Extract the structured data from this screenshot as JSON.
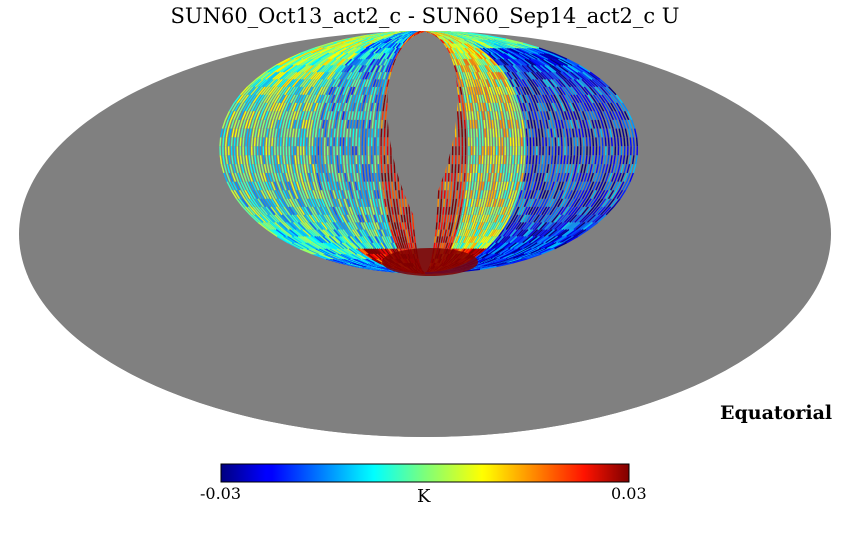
{
  "chart_data": {
    "type": "heatmap",
    "title": "SUN60_Oct13_act2_c - SUN60_Sep14_act2_c U",
    "projection": "mollweide",
    "coordinate_system": "Equatorial",
    "colormap": "jet",
    "background_color": "#808080",
    "colorbar": {
      "min_label": "-0.03",
      "max_label": "0.03",
      "min": -0.03,
      "max": 0.03,
      "unit": "K",
      "orientation": "horizontal"
    }
  }
}
